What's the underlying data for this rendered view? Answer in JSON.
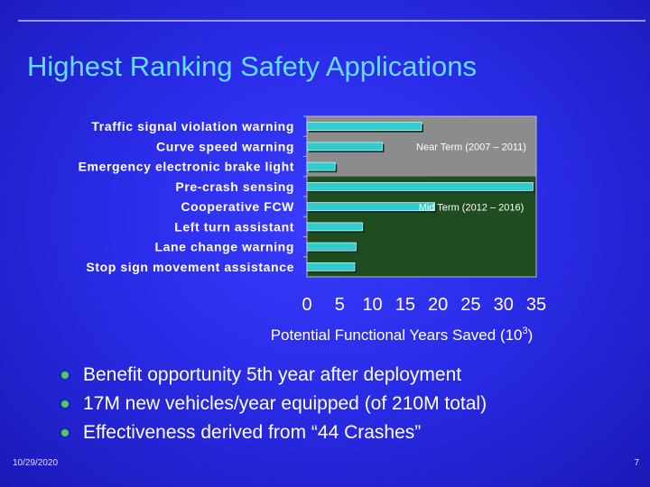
{
  "slide": {
    "title": "Highest Ranking Safety Applications",
    "date": "10/29/2020",
    "page_number": "7"
  },
  "bullets": [
    "Benefit opportunity 5th year after deployment",
    "17M new vehicles/year equipped (of 210M total)",
    "Effectiveness derived from “44 Crashes”"
  ],
  "colors": {
    "title": "#66ddff",
    "bar": "#33cccc",
    "near_term_bg": "#8c8c8c",
    "mid_term_bg": "#1f4d1f",
    "bullet_dot": "#4ad24a"
  },
  "chart_data": {
    "type": "bar",
    "orientation": "horizontal",
    "categories": [
      "Traffic signal violation warning",
      "Curve speed warning",
      "Emergency electronic brake light",
      "Pre-crash sensing",
      "Cooperative FCW",
      "Left turn assistant",
      "Lane change warning",
      "Stop sign movement assistance"
    ],
    "values": [
      17.5,
      11.5,
      4.3,
      34.5,
      19.5,
      8.5,
      7.5,
      7.3
    ],
    "xlabel": "Potential Functional Years Saved (10",
    "xlabel_sup": "3",
    "xlabel_end": ")",
    "xlim": [
      0,
      35
    ],
    "xticks": [
      0,
      5,
      10,
      15,
      20,
      25,
      30,
      35
    ],
    "regions": [
      {
        "label": "Near Term (2007 – 2011)",
        "categories_count": 3
      },
      {
        "label": "Mid Term (2012 – 2016)",
        "categories_count": 5
      }
    ],
    "grid": false,
    "legend": "none"
  }
}
